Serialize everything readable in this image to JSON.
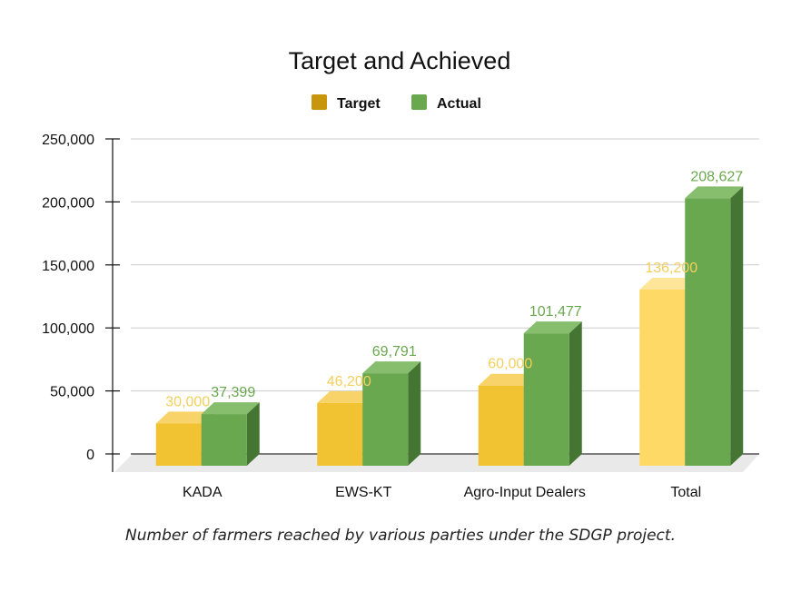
{
  "chart_data": {
    "type": "bar",
    "title": "Target and Achieved",
    "categories": [
      "KADA",
      "EWS-KT",
      "Agro-Input Dealers",
      "Total"
    ],
    "series": [
      {
        "name": "Target",
        "legend_color": "#C8960C",
        "values": [
          30000,
          46200,
          60000,
          136200
        ],
        "data_labels": [
          "30,000",
          "46,200",
          "60,000",
          "136,200"
        ]
      },
      {
        "name": "Actual",
        "legend_color": "#6AA84F",
        "values": [
          37399,
          69791,
          101477,
          208627
        ],
        "data_labels": [
          "37,399",
          "69,791",
          "101,477",
          "208,627"
        ]
      }
    ],
    "ylim": [
      0,
      250000
    ],
    "yticks": [
      0,
      50000,
      100000,
      150000,
      200000,
      250000
    ],
    "ytick_labels": [
      "0",
      "50,000",
      "100,000",
      "150,000",
      "200,000",
      "250,000"
    ],
    "xlabel": "",
    "ylabel": "",
    "grid": true,
    "legend": "top-center"
  },
  "caption": "Number of farmers reached by various parties under the SDGP project."
}
